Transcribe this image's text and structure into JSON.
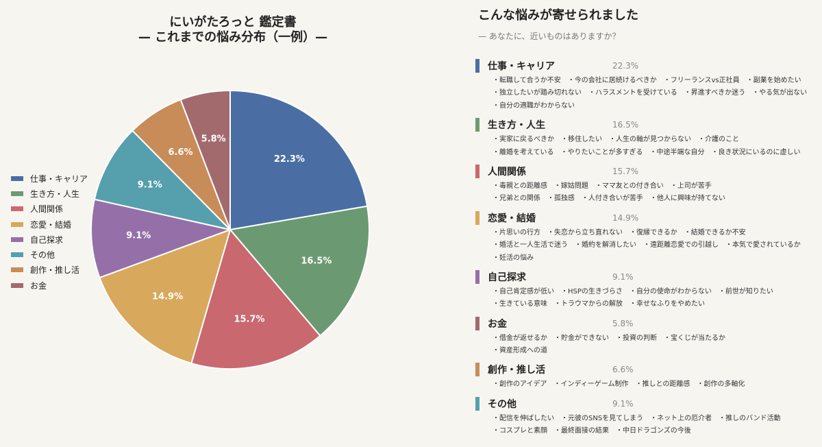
{
  "chart_data": {
    "type": "pie",
    "title": [
      "にいがたろっと 鑑定書",
      "— これまでの悩み分布（一例）—"
    ],
    "slices": [
      {
        "name": "仕事・キャリア",
        "value": 22.3,
        "label": "22.3%",
        "color": "#4a6ea3"
      },
      {
        "name": "生き方・人生",
        "value": 16.5,
        "label": "16.5%",
        "color": "#6b9a72"
      },
      {
        "name": "人間関係",
        "value": 15.7,
        "label": "15.7%",
        "color": "#c9686e"
      },
      {
        "name": "恋愛・結婚",
        "value": 14.9,
        "label": "14.9%",
        "color": "#d8a85c"
      },
      {
        "name": "自己探求",
        "value": 9.1,
        "label": "9.1%",
        "color": "#9570a8"
      },
      {
        "name": "その他",
        "value": 9.1,
        "label": "9.1%",
        "color": "#569fad"
      },
      {
        "name": "創作・推し活",
        "value": 6.6,
        "label": "6.6%",
        "color": "#c88c58"
      },
      {
        "name": "お金",
        "value": 5.8,
        "label": "5.8%",
        "color": "#a36a6d"
      }
    ],
    "legend_position": "left"
  },
  "right": {
    "title": "こんな悩みが寄せられました",
    "subtitle": "— あなたに、近いものはありますか？",
    "categories": [
      {
        "name": "仕事・キャリア",
        "percent": "22.3%",
        "color": "#4a6ea3",
        "lines": [
          "・転職して合うか不安　・今の会社に居続けるべきか　・フリーランスvs正社員　・副業を始めたい",
          "・独立したいが踏み切れない　・ハラスメントを受けている　・昇進すべきか迷う　・やる気が出ない",
          "・自分の適職がわからない"
        ]
      },
      {
        "name": "生き方・人生",
        "percent": "16.5%",
        "color": "#6b9a72",
        "lines": [
          "・実家に戻るべきか　・移住したい　・人生の軸が見つからない　・介護のこと",
          "・離婚を考えている　・やりたいことが多すぎる　・中途半端な自分　・良き状況にいるのに虚しい"
        ]
      },
      {
        "name": "人間関係",
        "percent": "15.7%",
        "color": "#c9686e",
        "lines": [
          "・毒親との距離感　・嫁姑問題　・ママ友との付き合い　・上司が苦手",
          "・兄弟との関係　・孤独感　・人付き合いが苦手　・他人に興味が持てない"
        ]
      },
      {
        "name": "恋愛・結婚",
        "percent": "14.9%",
        "color": "#d8a85c",
        "lines": [
          "・片思いの行方　・失恋から立ち直れない　・復縁できるか　・結婚できるか不安",
          "・婚活と一人生活で迷う　・婚約を解消したい　・遠距離恋愛での引越し　・本気で愛されているか",
          "・妊活の悩み"
        ]
      },
      {
        "name": "自己探求",
        "percent": "9.1%",
        "color": "#9570a8",
        "lines": [
          "・自己肯定感が低い　・HSPの生きづらさ　・自分の使命がわからない　・前世が知りたい",
          "・生きている意味　・トラウマからの解放　・幸せなふりをやめたい"
        ]
      },
      {
        "name": "お金",
        "percent": "5.8%",
        "color": "#a36a6d",
        "lines": [
          "・借金が返せるか　・貯金ができない　・投資の判断　・宝くじが当たるか",
          "・資産形成への道"
        ]
      },
      {
        "name": "創作・推し活",
        "percent": "6.6%",
        "color": "#c88c58",
        "lines": [
          "・創作のアイデア　・インディーゲーム制作　・推しとの距離感　・創作の多軸化"
        ]
      },
      {
        "name": "その他",
        "percent": "9.1%",
        "color": "#569fad",
        "lines": [
          "・配信を伸ばしたい　・元彼のSNSを見てしまう　・ネット上の厄介者　・推しのバンド活動",
          "・コスプレと素顔　・最終面接の結果　・中日ドラゴンズの今後"
        ]
      }
    ]
  }
}
